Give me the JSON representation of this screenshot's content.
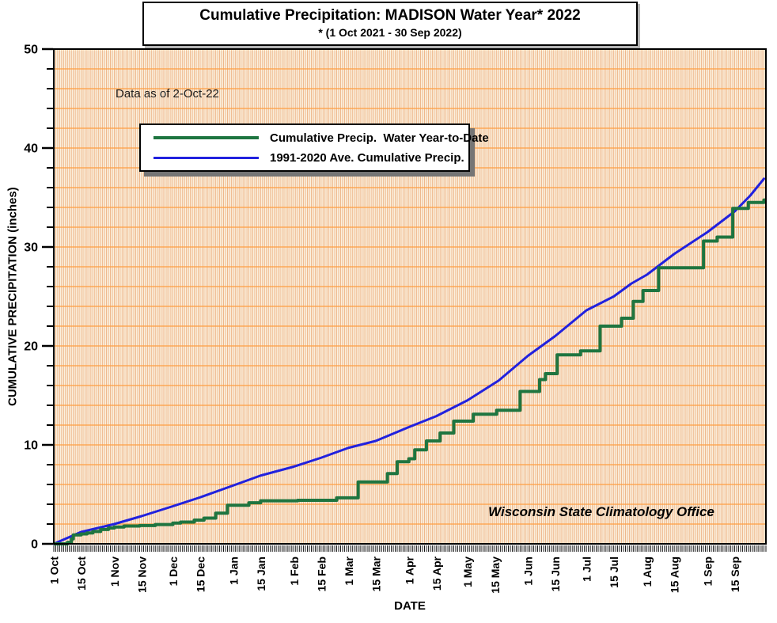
{
  "title": {
    "line1": "Cumulative Precipitation: MADISON Water Year* 2022",
    "line2": "* (1 Oct 2021 - 30 Sep 2022)"
  },
  "annotations": {
    "data_as_of": "Data as of 2-Oct-22",
    "office": "Wisconsin State Climatology Office"
  },
  "axes": {
    "x_label": "DATE",
    "y_label": "CUMULATIVE PRECIPITATION (inches)"
  },
  "colors": {
    "plot_bg": "#FBF1DF",
    "v_grid": "#EDB183",
    "h_grid": "#FF9E42",
    "axis": "#000000",
    "tick": "#111111"
  },
  "chart_data": {
    "type": "line",
    "title": "Cumulative Precipitation: MADISON Water Year* 2022",
    "subtitle": "* (1 Oct 2021 - 30 Sep 2022)",
    "xlabel": "DATE",
    "ylabel": "CUMULATIVE PRECIPITATION (inches)",
    "x_unit": "days since 1 Oct 2021",
    "xlim": [
      0,
      365
    ],
    "ylim": [
      0,
      50
    ],
    "y_major_ticks": [
      0,
      10,
      20,
      30,
      40,
      50
    ],
    "y_minor_step": 2,
    "grid": {
      "horizontal_every_inches": 2,
      "vertical": "daily"
    },
    "legend_position": "upper-left-inside",
    "x_ticks": [
      {
        "day": 0,
        "label": "1 Oct"
      },
      {
        "day": 14,
        "label": "15 Oct"
      },
      {
        "day": 31,
        "label": "1 Nov"
      },
      {
        "day": 45,
        "label": "15 Nov"
      },
      {
        "day": 61,
        "label": "1 Dec"
      },
      {
        "day": 75,
        "label": "15 Dec"
      },
      {
        "day": 92,
        "label": "1 Jan"
      },
      {
        "day": 106,
        "label": "15 Jan"
      },
      {
        "day": 123,
        "label": "1 Feb"
      },
      {
        "day": 137,
        "label": "15 Feb"
      },
      {
        "day": 151,
        "label": "1 Mar"
      },
      {
        "day": 165,
        "label": "15 Mar"
      },
      {
        "day": 182,
        "label": "1 Apr"
      },
      {
        "day": 196,
        "label": "15 Apr"
      },
      {
        "day": 212,
        "label": "1 May"
      },
      {
        "day": 226,
        "label": "15 May"
      },
      {
        "day": 243,
        "label": "1 Jun"
      },
      {
        "day": 257,
        "label": "15 Jun"
      },
      {
        "day": 273,
        "label": "1 Jul"
      },
      {
        "day": 287,
        "label": "15 Jul"
      },
      {
        "day": 304,
        "label": "1 Aug"
      },
      {
        "day": 318,
        "label": "15 Aug"
      },
      {
        "day": 335,
        "label": "1 Sep"
      },
      {
        "day": 349,
        "label": "15 Sep"
      }
    ],
    "series": [
      {
        "name": "Cumulative Precip.  Water Year-to-Date",
        "color": "#1E7540",
        "style": "step-after",
        "stroke_width": 4,
        "points": [
          [
            0,
            0
          ],
          [
            7,
            0.15
          ],
          [
            9,
            0.5
          ],
          [
            10,
            0.9
          ],
          [
            14,
            1.0
          ],
          [
            17,
            1.1
          ],
          [
            20,
            1.25
          ],
          [
            24,
            1.45
          ],
          [
            28,
            1.6
          ],
          [
            31,
            1.7
          ],
          [
            36,
            1.8
          ],
          [
            44,
            1.85
          ],
          [
            52,
            1.95
          ],
          [
            61,
            2.1
          ],
          [
            65,
            2.2
          ],
          [
            72,
            2.4
          ],
          [
            77,
            2.6
          ],
          [
            83,
            3.1
          ],
          [
            89,
            3.9
          ],
          [
            100,
            4.15
          ],
          [
            106,
            4.35
          ],
          [
            125,
            4.4
          ],
          [
            145,
            4.65
          ],
          [
            156,
            6.25
          ],
          [
            171,
            7.1
          ],
          [
            176,
            8.3
          ],
          [
            182,
            8.6
          ],
          [
            185,
            9.5
          ],
          [
            191,
            10.4
          ],
          [
            198,
            11.2
          ],
          [
            205,
            12.4
          ],
          [
            215,
            13.1
          ],
          [
            227,
            13.5
          ],
          [
            239,
            15.4
          ],
          [
            249,
            16.6
          ],
          [
            252,
            17.2
          ],
          [
            258,
            19.1
          ],
          [
            270,
            19.5
          ],
          [
            280,
            22.0
          ],
          [
            291,
            22.8
          ],
          [
            297,
            24.5
          ],
          [
            302,
            25.6
          ],
          [
            310,
            27.9
          ],
          [
            333,
            30.6
          ],
          [
            340,
            31.0
          ],
          [
            348,
            33.9
          ],
          [
            356,
            34.5
          ],
          [
            364,
            34.75
          ]
        ]
      },
      {
        "name": "1991-2020 Ave. Cumulative Precip.",
        "color": "#2121DE",
        "style": "linear",
        "stroke_width": 3,
        "points": [
          [
            0,
            0
          ],
          [
            14,
            1.2
          ],
          [
            31,
            2.0
          ],
          [
            45,
            2.8
          ],
          [
            61,
            3.8
          ],
          [
            75,
            4.7
          ],
          [
            92,
            5.9
          ],
          [
            106,
            6.9
          ],
          [
            123,
            7.8
          ],
          [
            137,
            8.7
          ],
          [
            151,
            9.7
          ],
          [
            165,
            10.4
          ],
          [
            182,
            11.8
          ],
          [
            196,
            12.9
          ],
          [
            212,
            14.5
          ],
          [
            228,
            16.5
          ],
          [
            243,
            19.0
          ],
          [
            257,
            21.0
          ],
          [
            273,
            23.6
          ],
          [
            287,
            25.0
          ],
          [
            296,
            26.3
          ],
          [
            304,
            27.2
          ],
          [
            318,
            29.3
          ],
          [
            335,
            31.5
          ],
          [
            349,
            33.6
          ],
          [
            357,
            35.2
          ],
          [
            364,
            36.9
          ]
        ]
      }
    ]
  }
}
